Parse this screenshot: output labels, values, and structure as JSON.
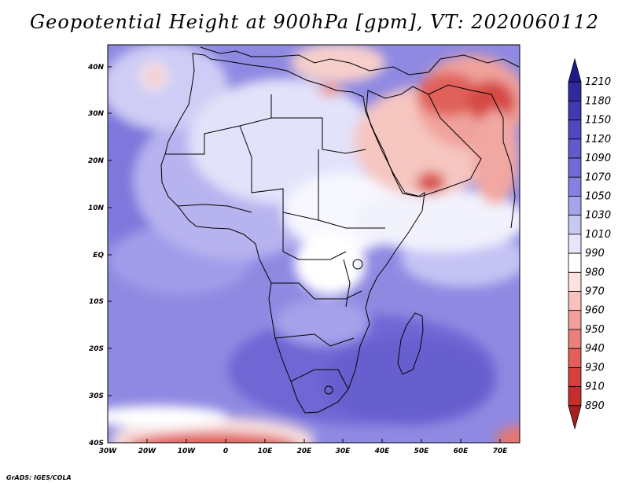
{
  "title": "Geopotential Height at 900hPa [gpm], VT: 2020060112",
  "credit": "GrADS: IGES/COLA",
  "map": {
    "lon_range": [
      -30,
      75
    ],
    "lat_range": [
      -40,
      45
    ],
    "x_ticks": [
      "30W",
      "20W",
      "10W",
      "0",
      "10E",
      "20E",
      "30E",
      "40E",
      "50E",
      "60E",
      "70E"
    ],
    "y_ticks": [
      "40N",
      "30N",
      "20N",
      "10N",
      "EQ",
      "10S",
      "20S",
      "30S",
      "40S"
    ]
  },
  "colorbar": {
    "labels": [
      "1210",
      "1180",
      "1150",
      "1120",
      "1090",
      "1070",
      "1050",
      "1030",
      "1010",
      "990",
      "980",
      "970",
      "960",
      "950",
      "940",
      "930",
      "910",
      "890"
    ],
    "colors": [
      "#1e1a8c",
      "#2f2a9e",
      "#3f3ab0",
      "#5048c0",
      "#6259cc",
      "#7369d8",
      "#8880e0",
      "#a7a3ea",
      "#c9c8f3",
      "#e6e6fa",
      "#ffffff",
      "#fde2e0",
      "#f8c1bd",
      "#f2a09b",
      "#eb7f7a",
      "#e25f5b",
      "#d5403d",
      "#c42e2c",
      "#a81f1f"
    ]
  }
}
